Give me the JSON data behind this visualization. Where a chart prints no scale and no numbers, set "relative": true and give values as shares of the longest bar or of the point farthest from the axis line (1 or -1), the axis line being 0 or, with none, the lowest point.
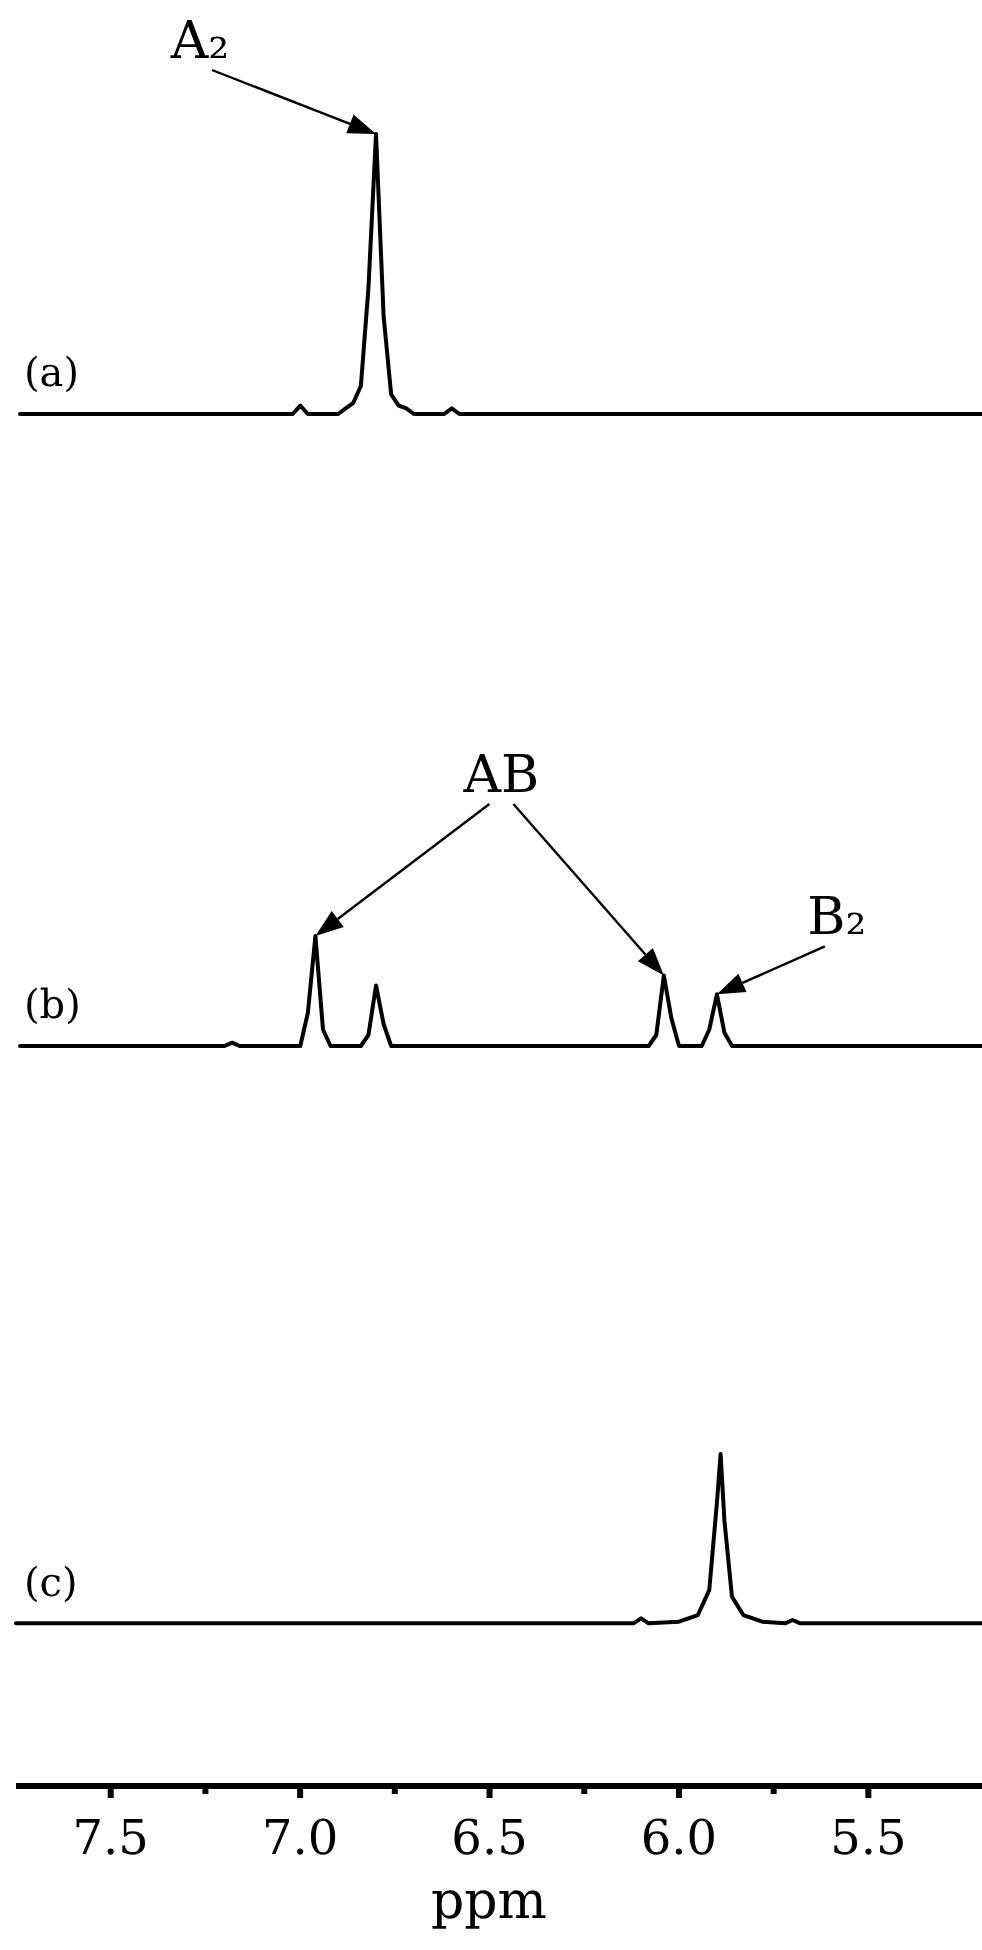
{
  "chart_data": [
    {
      "type": "line",
      "title": "(a)",
      "relative": true,
      "tick_labels": false,
      "line_style": "solid",
      "categories": [
        null,
        null,
        null,
        null,
        null,
        null,
        null,
        null,
        null,
        null,
        null,
        null,
        null,
        null,
        null,
        null,
        null,
        null,
        null,
        null,
        null,
        null,
        null,
        null,
        null,
        null,
        null,
        null,
        null,
        null,
        null,
        null,
        null,
        null,
        null,
        null,
        null,
        null,
        null,
        null,
        null,
        null,
        null,
        null,
        null,
        null,
        null,
        null,
        null,
        null,
        null,
        null,
        null,
        null,
        null,
        null,
        null,
        null,
        null,
        null,
        null,
        null,
        null,
        null,
        null,
        null,
        null,
        null,
        null,
        null,
        null,
        null,
        null,
        null,
        null,
        null,
        null,
        null,
        null,
        null,
        null,
        null,
        null,
        null,
        null,
        null,
        null,
        null,
        null,
        null,
        null,
        null,
        null,
        null,
        null,
        null,
        null,
        null,
        null,
        null,
        null,
        null,
        null,
        null,
        null,
        null,
        null,
        null,
        null,
        null,
        null,
        null,
        null,
        null,
        null,
        null,
        null,
        null,
        null,
        null,
        null,
        null,
        null,
        null,
        null,
        null,
        null,
        null
      ],
      "series": [
        {
          "color": "#000000",
          "values": [
            0,
            0,
            0,
            0,
            0,
            0,
            0,
            0,
            0,
            0,
            0,
            0,
            0,
            0,
            0,
            0,
            0,
            0,
            0,
            0,
            0,
            0,
            0,
            0,
            0,
            0,
            0,
            0,
            0,
            0,
            0,
            0,
            0,
            0,
            0,
            0,
            0,
            0.03,
            0,
            0,
            0,
            0,
            0,
            0.02,
            0.04,
            0.1,
            0.45,
            1,
            0.35,
            0.07,
            0.03,
            0.02,
            0,
            0,
            0,
            0,
            0,
            0.02,
            0,
            0,
            0,
            0,
            0,
            0,
            0,
            0,
            0,
            0,
            0,
            0,
            0,
            0,
            0,
            0,
            0,
            0,
            0,
            0,
            0,
            0,
            0,
            0,
            0,
            0,
            0,
            0,
            0,
            0,
            0,
            0,
            0,
            0,
            0,
            0,
            0,
            0,
            0,
            0,
            0,
            0,
            0,
            0,
            0,
            0,
            0,
            0,
            0,
            0,
            0,
            0,
            0,
            0,
            0,
            0,
            0,
            0,
            0,
            0,
            0,
            0,
            0,
            0,
            0,
            0,
            0,
            0,
            0,
            0
          ]
        }
      ],
      "annotations": [
        "A₂"
      ]
    },
    {
      "type": "line",
      "title": "(b)",
      "relative": true,
      "tick_labels": false,
      "line_style": "solid",
      "categories": [
        null,
        null,
        null,
        null,
        null,
        null,
        null,
        null,
        null,
        null,
        null,
        null,
        null,
        null,
        null,
        null,
        null,
        null,
        null,
        null,
        null,
        null,
        null,
        null,
        null,
        null,
        null,
        null,
        null,
        null,
        null,
        null,
        null,
        null,
        null,
        null,
        null,
        null,
        null,
        null,
        null,
        null,
        null,
        null,
        null,
        null,
        null,
        null,
        null,
        null,
        null,
        null,
        null,
        null,
        null,
        null,
        null,
        null,
        null,
        null,
        null,
        null,
        null,
        null,
        null,
        null,
        null,
        null,
        null,
        null,
        null,
        null,
        null,
        null,
        null,
        null,
        null,
        null,
        null,
        null,
        null,
        null,
        null,
        null,
        null,
        null,
        null,
        null,
        null,
        null,
        null,
        null,
        null,
        null,
        null,
        null,
        null,
        null,
        null,
        null,
        null,
        null,
        null,
        null,
        null,
        null,
        null,
        null,
        null,
        null,
        null,
        null,
        null,
        null,
        null,
        null,
        null,
        null,
        null,
        null,
        null,
        null,
        null,
        null,
        null,
        null,
        null,
        null
      ],
      "series": [
        {
          "color": "#000000",
          "values": [
            0,
            0,
            0,
            0,
            0,
            0,
            0,
            0,
            0,
            0,
            0,
            0,
            0,
            0,
            0,
            0,
            0,
            0,
            0,
            0,
            0,
            0,
            0,
            0,
            0,
            0,
            0,
            0,
            0.03,
            0,
            0,
            0,
            0,
            0,
            0,
            0,
            0,
            0,
            0.3,
            1,
            0.15,
            0,
            0,
            0,
            0,
            0,
            0.1,
            0.55,
            0.2,
            0,
            0,
            0,
            0,
            0,
            0,
            0,
            0,
            0,
            0,
            0,
            0,
            0,
            0,
            0,
            0,
            0,
            0,
            0,
            0,
            0,
            0,
            0,
            0,
            0,
            0,
            0,
            0,
            0,
            0,
            0,
            0,
            0,
            0,
            0,
            0.1,
            0.64,
            0.25,
            0,
            0,
            0,
            0,
            0.15,
            0.47,
            0.12,
            0,
            0,
            0,
            0,
            0,
            0,
            0,
            0,
            0,
            0,
            0,
            0,
            0,
            0,
            0,
            0,
            0,
            0,
            0,
            0,
            0,
            0,
            0,
            0,
            0,
            0,
            0,
            0,
            0,
            0,
            0,
            0,
            0,
            0
          ]
        }
      ],
      "annotations": [
        "AB",
        "B₂"
      ]
    },
    {
      "type": "line",
      "title": "(c)",
      "relative": true,
      "xlim": [
        7.75,
        5.2
      ],
      "xlabel": "ppm",
      "tick_labels": "x",
      "xticks": [
        7.5,
        {
          "value": 7,
          "label": "7.0"
        },
        6.5,
        {
          "value": 6,
          "label": "6.0"
        },
        5.5
      ],
      "line_style": "solid",
      "series": [
        {
          "color": "#000000",
          "x": [
            7.75,
            7.3,
            6.8,
            6.4,
            6.12,
            6.1,
            6.08,
            6.0,
            5.95,
            5.92,
            5.9,
            5.89,
            5.88,
            5.86,
            5.83,
            5.78,
            5.72,
            5.7,
            5.68,
            5.5,
            5.2
          ],
          "values": [
            0.49,
            0.49,
            0.49,
            0.49,
            0.49,
            0.505,
            0.49,
            0.495,
            0.515,
            0.59,
            0.85,
            1,
            0.8,
            0.57,
            0.515,
            0.495,
            0.49,
            0.5,
            0.49,
            0.49,
            0.49
          ]
        }
      ]
    }
  ]
}
